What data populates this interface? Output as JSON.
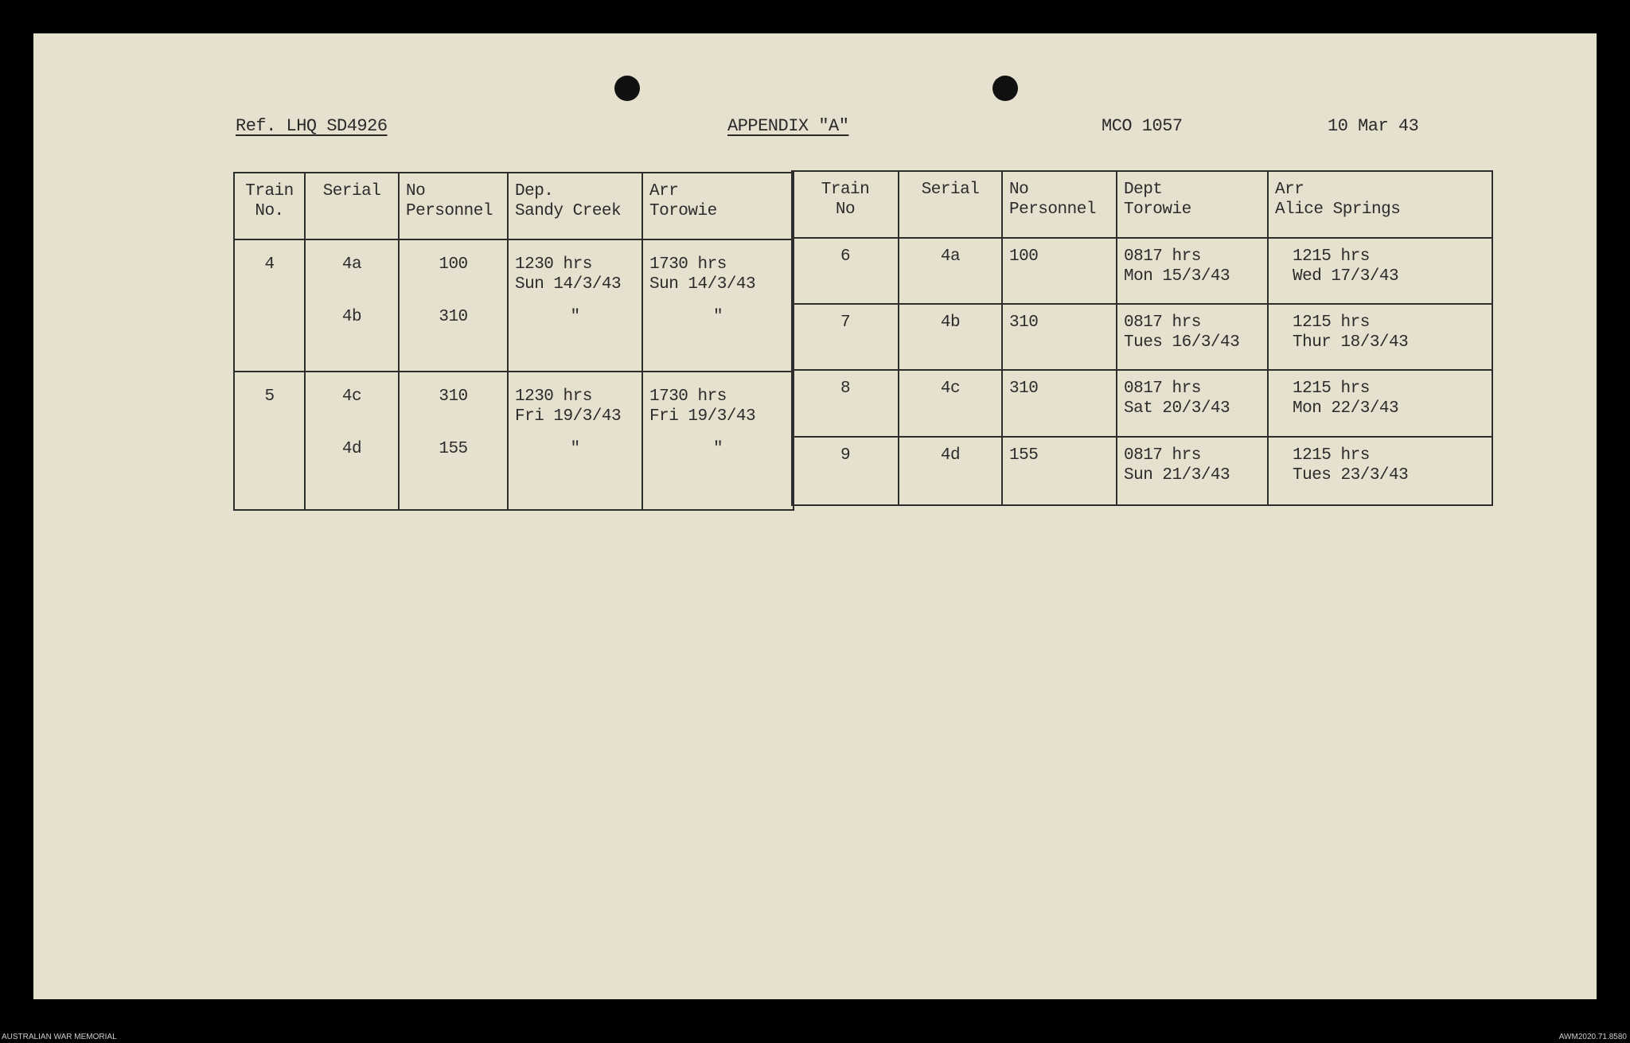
{
  "document": {
    "reference": "Ref. LHQ SD4926",
    "title": "APPENDIX \"A\"",
    "file_no": "MCO 1057",
    "date": "10 Mar 43"
  },
  "left_table": {
    "headers": [
      "Train\nNo.",
      "Serial",
      "No\nPersonnel",
      "Dep.\nSandy Creek",
      "Arr\nTorowie"
    ],
    "groups": [
      {
        "train": "4",
        "rows": [
          {
            "serial": "4a",
            "personnel": "100",
            "dep": "1230 hrs\nSun 14/3/43",
            "arr": "1730 hrs\nSun 14/3/43"
          },
          {
            "serial": "4b",
            "personnel": "310",
            "dep": "\"",
            "arr": "\""
          }
        ]
      },
      {
        "train": "5",
        "rows": [
          {
            "serial": "4c",
            "personnel": "310",
            "dep": "1230 hrs\nFri 19/3/43",
            "arr": "1730 hrs\nFri 19/3/43"
          },
          {
            "serial": "4d",
            "personnel": "155",
            "dep": "\"",
            "arr": "\""
          }
        ]
      }
    ]
  },
  "right_table": {
    "headers": [
      "Train\nNo",
      "Serial",
      "No\nPersonnel",
      "Dept\nTorowie",
      "Arr\nAlice Springs"
    ],
    "rows": [
      {
        "train": "6",
        "serial": "4a",
        "personnel": "100",
        "dep": "0817 hrs\nMon 15/3/43",
        "arr": "1215 hrs\nWed 17/3/43"
      },
      {
        "train": "7",
        "serial": "4b",
        "personnel": "310",
        "dep": "0817 hrs\nTues 16/3/43",
        "arr": "1215 hrs\nThur 18/3/43"
      },
      {
        "train": "8",
        "serial": "4c",
        "personnel": "310",
        "dep": "0817 hrs\nSat 20/3/43",
        "arr": "1215 hrs\nMon 22/3/43"
      },
      {
        "train": "9",
        "serial": "4d",
        "personnel": "155",
        "dep": "0817 hrs\nSun 21/3/43",
        "arr": "1215 hrs\nTues 23/3/43"
      }
    ]
  },
  "footer": {
    "left": "AUSTRALIAN WAR MEMORIAL",
    "right": "AWM2020.71.8580"
  }
}
